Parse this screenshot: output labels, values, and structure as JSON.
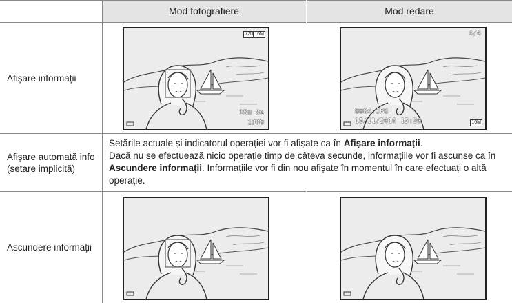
{
  "table": {
    "columns": [
      "Mod fotografiere",
      "Mod redare"
    ],
    "rows": [
      {
        "label_lines": [
          "Afișare informații"
        ],
        "shooting_overlay": [
          "720",
          "16M",
          "15m 0s",
          "1900"
        ],
        "playback_overlay": [
          "4/4",
          "0004.JPG",
          "15/11/2016 15:30",
          "16M"
        ]
      },
      {
        "label_lines": [
          "Afișare automată info",
          "(setare implicită)"
        ],
        "description": [
          [
            {
              "text": "Setările actuale și indicatorul operației vor fi afișate ca în "
            },
            {
              "text": "Afișare informații",
              "bold": true
            },
            {
              "text": "."
            }
          ],
          [
            {
              "text": "Dacă nu se efectuează nicio operație timp de câteva secunde, informațiile vor fi ascunse ca în "
            },
            {
              "text": "Ascundere informații",
              "bold": true
            },
            {
              "text": ". Informațiile vor fi din nou afișate în momentul în care efectuați o altă operație."
            }
          ]
        ]
      },
      {
        "label_lines": [
          "Ascundere informații"
        ]
      }
    ]
  }
}
